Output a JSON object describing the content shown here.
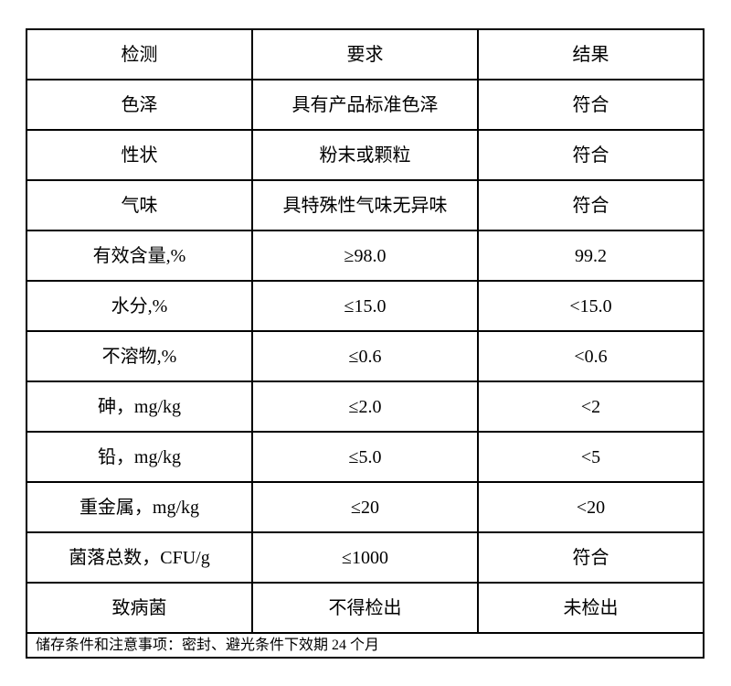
{
  "page": {
    "background": "#ffffff",
    "text_color": "#000000"
  },
  "table": {
    "border_color": "#000000",
    "headers": [
      "检测",
      "要求",
      "结果"
    ],
    "rows": [
      [
        "色泽",
        "具有产品标准色泽",
        "符合"
      ],
      [
        "性状",
        "粉末或颗粒",
        "符合"
      ],
      [
        "气味",
        "具特殊性气味无异味",
        "符合"
      ],
      [
        "有效含量,%",
        "≥98.0",
        "99.2"
      ],
      [
        "水分,%",
        "≤15.0",
        "<15.0"
      ],
      [
        "不溶物,%",
        "≤0.6",
        "<0.6"
      ],
      [
        "砷，mg/kg",
        "≤2.0",
        "<2"
      ],
      [
        "铅，mg/kg",
        "≤5.0",
        "<5"
      ],
      [
        "重金属，mg/kg",
        "≤20",
        "<20"
      ],
      [
        "菌落总数，CFU/g",
        "≤1000",
        "符合"
      ],
      [
        "致病菌",
        "不得检出",
        "未检出"
      ]
    ],
    "footer": "储存条件和注意事项：密封、避光条件下效期 24 个月"
  }
}
